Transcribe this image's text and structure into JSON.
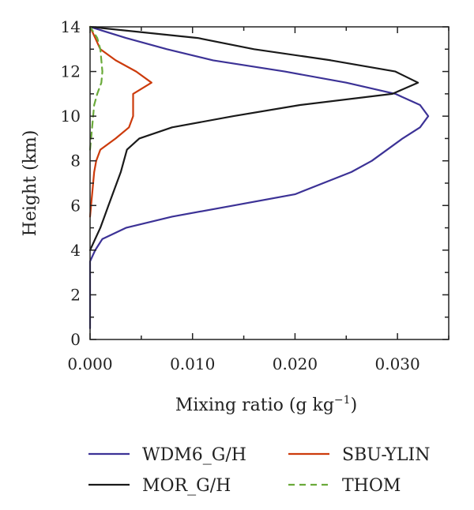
{
  "chart_data": {
    "type": "line",
    "xlabel": "Mixing ratio (g kg",
    "xlabel_sup": "−1",
    "xlabel_end": ")",
    "ylabel": "Height (km)",
    "xlim": [
      0.0,
      0.035
    ],
    "ylim": [
      0,
      14
    ],
    "xticks": [
      0.0,
      0.01,
      0.02,
      0.03
    ],
    "xtick_labels": [
      "0.000",
      "0.010",
      "0.020",
      "0.030"
    ],
    "yticks": [
      0,
      2,
      4,
      6,
      8,
      10,
      12,
      14
    ],
    "ytick_labels": [
      "0",
      "2",
      "4",
      "6",
      "8",
      "10",
      "12",
      "14"
    ],
    "grid": false,
    "legend_position": "bottom",
    "series": [
      {
        "name": "WDM6_G/H",
        "color": "#3c3296",
        "dash": "solid",
        "points": [
          [
            0.0,
            0.5
          ],
          [
            0.0,
            3.5
          ],
          [
            0.0005,
            4.0
          ],
          [
            0.0012,
            4.5
          ],
          [
            0.0035,
            5.0
          ],
          [
            0.008,
            5.5
          ],
          [
            0.014,
            6.0
          ],
          [
            0.02,
            6.5
          ],
          [
            0.0255,
            7.5
          ],
          [
            0.0275,
            8.0
          ],
          [
            0.0305,
            9.0
          ],
          [
            0.0322,
            9.5
          ],
          [
            0.033,
            10.0
          ],
          [
            0.0322,
            10.5
          ],
          [
            0.0298,
            11.0
          ],
          [
            0.025,
            11.5
          ],
          [
            0.019,
            12.0
          ],
          [
            0.012,
            12.5
          ],
          [
            0.0075,
            13.0
          ],
          [
            0.0035,
            13.5
          ],
          [
            0.0,
            14.0
          ]
        ]
      },
      {
        "name": "MOR_G/H",
        "color": "#1a1a1a",
        "dash": "solid",
        "points": [
          [
            0.0,
            4.0
          ],
          [
            0.0005,
            4.5
          ],
          [
            0.001,
            5.0
          ],
          [
            0.0014,
            5.5
          ],
          [
            0.0018,
            6.0
          ],
          [
            0.0022,
            6.5
          ],
          [
            0.0026,
            7.0
          ],
          [
            0.003,
            7.5
          ],
          [
            0.0033,
            8.0
          ],
          [
            0.0036,
            8.5
          ],
          [
            0.0048,
            9.0
          ],
          [
            0.008,
            9.5
          ],
          [
            0.014,
            10.0
          ],
          [
            0.0205,
            10.5
          ],
          [
            0.0295,
            11.0
          ],
          [
            0.032,
            11.5
          ],
          [
            0.0298,
            12.0
          ],
          [
            0.0235,
            12.5
          ],
          [
            0.016,
            13.0
          ],
          [
            0.0105,
            13.5
          ],
          [
            0.0,
            14.0
          ]
        ]
      },
      {
        "name": "SBU-YLIN",
        "color": "#cc3b0c",
        "dash": "solid",
        "points": [
          [
            0.0,
            5.5
          ],
          [
            0.0002,
            6.5
          ],
          [
            0.0003,
            7.0
          ],
          [
            0.0004,
            7.5
          ],
          [
            0.0006,
            8.0
          ],
          [
            0.001,
            8.5
          ],
          [
            0.0025,
            9.0
          ],
          [
            0.0038,
            9.5
          ],
          [
            0.0042,
            10.0
          ],
          [
            0.0042,
            10.5
          ],
          [
            0.0042,
            11.0
          ],
          [
            0.006,
            11.5
          ],
          [
            0.0045,
            12.0
          ],
          [
            0.0025,
            12.5
          ],
          [
            0.001,
            13.0
          ],
          [
            0.0005,
            13.5
          ],
          [
            0.0,
            14.0
          ]
        ]
      },
      {
        "name": "THOM",
        "color": "#6aaa3a",
        "dash": "dashed",
        "points": [
          [
            0.0,
            8.5
          ],
          [
            0.0002,
            9.5
          ],
          [
            0.0004,
            10.5
          ],
          [
            0.0007,
            11.0
          ],
          [
            0.0011,
            11.5
          ],
          [
            0.0012,
            12.0
          ],
          [
            0.001,
            13.0
          ],
          [
            0.0007,
            13.5
          ],
          [
            0.0,
            14.0
          ]
        ]
      }
    ]
  }
}
